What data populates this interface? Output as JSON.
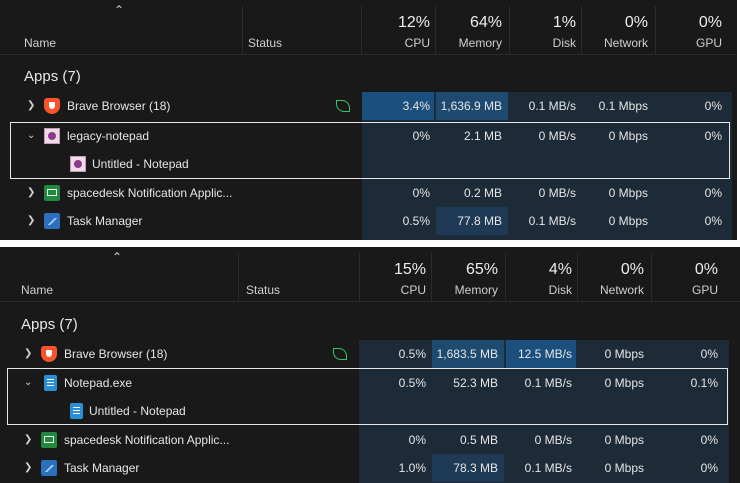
{
  "top": {
    "header": {
      "name": "Name",
      "status": "Status",
      "cpu_pct": "12%",
      "cpu": "CPU",
      "mem_pct": "64%",
      "mem": "Memory",
      "disk_pct": "1%",
      "disk": "Disk",
      "net_pct": "0%",
      "net": "Network",
      "gpu_pct": "0%",
      "gpu": "GPU"
    },
    "section": "Apps (7)",
    "rows": [
      {
        "name": "Brave Browser (18)",
        "cpu": "3.4%",
        "mem": "1,636.9 MB",
        "disk": "0.1 MB/s",
        "net": "0.1 Mbps",
        "gpu": "0%"
      },
      {
        "name": "legacy-notepad",
        "cpu": "0%",
        "mem": "2.1 MB",
        "disk": "0 MB/s",
        "net": "0 Mbps",
        "gpu": "0%"
      },
      {
        "name": "Untitled - Notepad"
      },
      {
        "name": "spacedesk Notification Applic...",
        "cpu": "0%",
        "mem": "0.2 MB",
        "disk": "0 MB/s",
        "net": "0 Mbps",
        "gpu": "0%"
      },
      {
        "name": "Task Manager",
        "cpu": "0.5%",
        "mem": "77.8 MB",
        "disk": "0.1 MB/s",
        "net": "0 Mbps",
        "gpu": "0%"
      }
    ]
  },
  "bottom": {
    "header": {
      "name": "Name",
      "status": "Status",
      "cpu_pct": "15%",
      "cpu": "CPU",
      "mem_pct": "65%",
      "mem": "Memory",
      "disk_pct": "4%",
      "disk": "Disk",
      "net_pct": "0%",
      "net": "Network",
      "gpu_pct": "0%",
      "gpu": "GPU"
    },
    "section": "Apps (7)",
    "rows": [
      {
        "name": "Brave Browser (18)",
        "cpu": "0.5%",
        "mem": "1,683.5 MB",
        "disk": "12.5 MB/s",
        "net": "0 Mbps",
        "gpu": "0%"
      },
      {
        "name": "Notepad.exe",
        "cpu": "0.5%",
        "mem": "52.3 MB",
        "disk": "0.1 MB/s",
        "net": "0 Mbps",
        "gpu": "0.1%"
      },
      {
        "name": "Untitled - Notepad"
      },
      {
        "name": "spacedesk Notification Applic...",
        "cpu": "0%",
        "mem": "0.5 MB",
        "disk": "0 MB/s",
        "net": "0 Mbps",
        "gpu": "0%"
      },
      {
        "name": "Task Manager",
        "cpu": "1.0%",
        "mem": "78.3 MB",
        "disk": "0.1 MB/s",
        "net": "0 Mbps",
        "gpu": "0%"
      }
    ]
  },
  "colors": {
    "background": "#191919",
    "heat_light": "#1d2a38",
    "heat_medium": "#1e3a55",
    "heat_strong": "#1b4f7d",
    "selection_border": "#e6e6e6",
    "eco_leaf": "#3cc36a"
  },
  "icons": [
    "brave-icon",
    "legacy-notepad-icon",
    "notepad-icon",
    "spacedesk-icon",
    "task-manager-icon",
    "eco-leaf-icon",
    "chevron-right-icon",
    "chevron-down-icon",
    "sort-up-icon"
  ]
}
